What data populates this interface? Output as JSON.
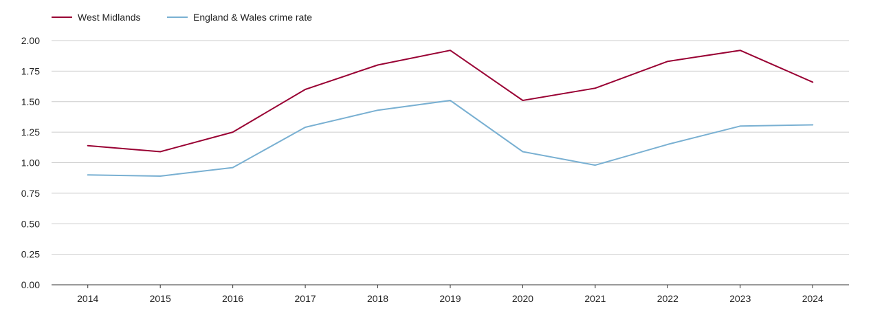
{
  "chart_data": {
    "type": "line",
    "title": "",
    "xlabel": "",
    "ylabel": "",
    "categories": [
      "2014",
      "2015",
      "2016",
      "2017",
      "2018",
      "2019",
      "2020",
      "2021",
      "2022",
      "2023",
      "2024"
    ],
    "ylim": [
      0,
      2
    ],
    "yticks": [
      "0.00",
      "0.25",
      "0.50",
      "0.75",
      "1.00",
      "1.25",
      "1.50",
      "1.75",
      "2.00"
    ],
    "grid": true,
    "legend_position": "top-left",
    "series": [
      {
        "name": "West Midlands",
        "color": "#990033",
        "values": [
          1.14,
          1.09,
          1.25,
          1.6,
          1.8,
          1.92,
          1.51,
          1.61,
          1.83,
          1.92,
          1.66
        ]
      },
      {
        "name": "England & Wales crime rate",
        "color": "#79b0d2",
        "values": [
          0.9,
          0.89,
          0.96,
          1.29,
          1.43,
          1.51,
          1.09,
          0.98,
          1.15,
          1.3,
          1.31
        ]
      }
    ]
  }
}
